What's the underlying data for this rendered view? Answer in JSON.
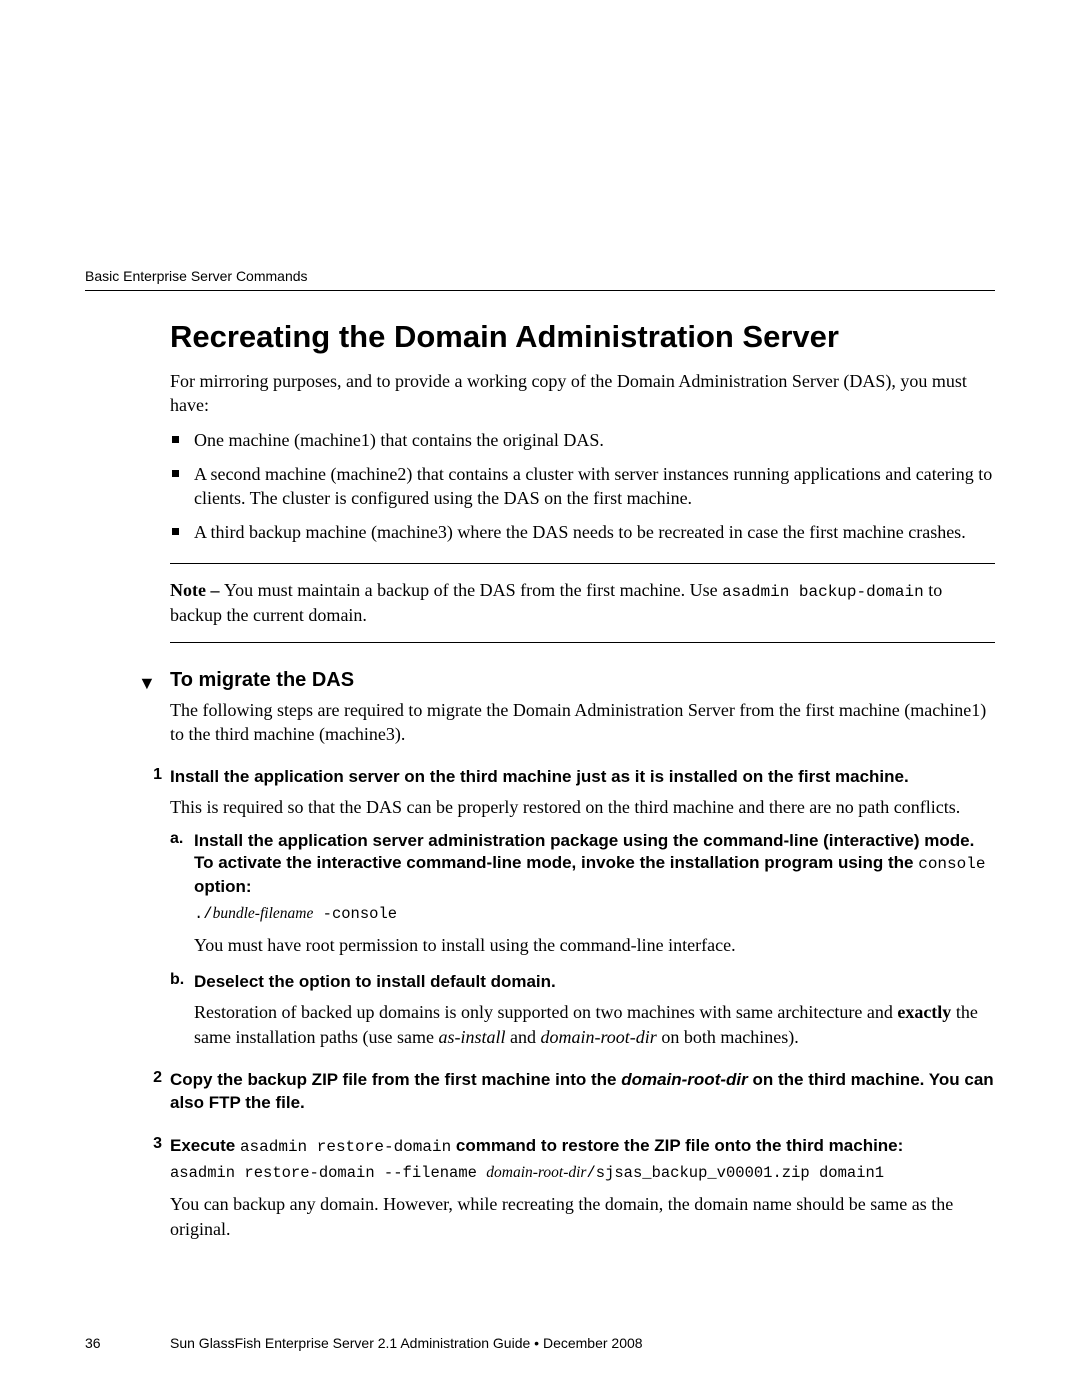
{
  "running_head": "Basic Enterprise Server Commands",
  "section_title": "Recreating the Domain Administration Server",
  "intro": "For mirroring purposes, and to provide a working copy of the Domain Administration Server (DAS), you must have:",
  "bullets": [
    "One machine (machine1) that contains the original DAS.",
    "A second machine (machine2) that contains a cluster with server instances running applications and catering to clients. The cluster is configured using the DAS on the first machine.",
    "A third backup machine (machine3) where the DAS needs to be recreated in case the first machine crashes."
  ],
  "note_prefix": "Note – ",
  "note_text_1": "You must maintain a backup of the DAS from the first machine. Use ",
  "note_code": "asadmin backup-domain",
  "note_text_2": " to backup the current domain.",
  "sub_title": "To migrate the DAS",
  "sub_intro": "The following steps are required to migrate the Domain Administration Server from the first machine (machine1) to the third machine (machine3).",
  "step1_head": "Install the application server on the third machine just as it is installed on the first machine.",
  "step1_body": "This is required so that the DAS can be properly restored on the third machine and there are no path conflicts.",
  "step1a_head_1": "Install the application server administration package using the command-line (interactive) mode. To activate the interactive command-line mode, invoke the installation program using the ",
  "step1a_head_code": "console",
  "step1a_head_2": " option:",
  "step1a_code_prefix": "./",
  "step1a_code_ital": "bundle-filename",
  "step1a_code_suffix": " -console",
  "step1a_body": "You must have root permission to install using the command-line interface.",
  "step1b_head": "Deselect the option to install default domain.",
  "step1b_body_1": "Restoration of backed up domains is only supported on two machines with same architecture and ",
  "step1b_body_bold": "exactly",
  "step1b_body_2": " the same installation paths (use same ",
  "step1b_ital1": "as-install",
  "step1b_body_3": " and ",
  "step1b_ital2": "domain-root-dir",
  "step1b_body_4": " on both machines).",
  "step2_head_1": "Copy the backup ZIP file from the first machine into the ",
  "step2_head_ital": "domain-root-dir",
  "step2_head_2": " on the third machine. You can also FTP the file.",
  "step3_head_1": "Execute ",
  "step3_head_code": "asadmin restore-domain",
  "step3_head_2": " command to restore the ZIP file onto the third machine:",
  "step3_code_1": "asadmin restore-domain --filename ",
  "step3_code_ital": "domain-root-dir",
  "step3_code_2": "/sjsas_backup_v00001.zip domain1",
  "step3_body": "You can backup any domain. However, while recreating the domain, the domain name should be same as the original.",
  "footer_page": "36",
  "footer_text": "Sun GlassFish Enterprise Server 2.1 Administration Guide  •  December 2008"
}
